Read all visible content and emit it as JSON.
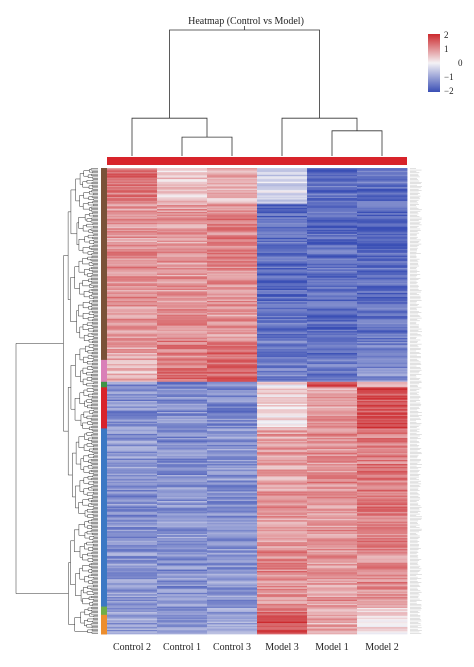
{
  "chart_data": {
    "type": "heatmap",
    "title": "Heatmap (Control vs Model)",
    "samples": [
      "Control 2",
      "Control 1",
      "Control 3",
      "Model 3",
      "Model 1",
      "Model 2"
    ],
    "color_scale": {
      "min": -2,
      "max": 2,
      "ticks": [
        "2",
        "1",
        "0",
        "−1",
        "−2"
      ],
      "colors": {
        "low": "#3a4fb5",
        "mid": "#f4f2f5",
        "high": "#cc2a2e"
      }
    },
    "column_group_color": "#d8232a",
    "row_cluster_colors": [
      "#7a5238",
      "#d97fb8",
      "#3f9447",
      "#d8232a",
      "#3b78c4",
      "#6fae48",
      "#ec8e2e"
    ],
    "row_blocks": [
      {
        "rows": 26,
        "cluster": "#7a5238",
        "values": [
          1.3,
          0.4,
          0.6,
          -0.3,
          -1.6,
          -1.6
        ]
      },
      {
        "rows": 34,
        "cluster": "#7a5238",
        "values": [
          0.9,
          0.9,
          1.1,
          -1.6,
          -1.7,
          -1.7
        ]
      },
      {
        "rows": 40,
        "cluster": "#7a5238",
        "values": [
          1.0,
          0.9,
          1.0,
          -1.7,
          -1.6,
          -1.6
        ]
      },
      {
        "rows": 26,
        "cluster": "#7a5238",
        "values": [
          0.9,
          1.0,
          0.9,
          -1.6,
          -1.7,
          -1.5
        ]
      },
      {
        "rows": 14,
        "cluster": "#7a5238",
        "values": [
          0.8,
          1.1,
          1.3,
          -1.5,
          -1.6,
          -1.4
        ]
      },
      {
        "rows": 16,
        "cluster": "#d97fb8",
        "values": [
          0.6,
          1.2,
          1.4,
          -1.4,
          -1.4,
          -1.2
        ]
      },
      {
        "rows": 4,
        "cluster": "#3f9447",
        "values": [
          -1.2,
          -1.3,
          -1.2,
          0.2,
          1.6,
          0.3
        ]
      },
      {
        "rows": 30,
        "cluster": "#d8232a",
        "values": [
          -1.2,
          -1.2,
          -1.3,
          0.3,
          0.8,
          1.6
        ]
      },
      {
        "rows": 40,
        "cluster": "#3b78c4",
        "values": [
          -1.1,
          -1.2,
          -1.1,
          0.8,
          1.0,
          1.2
        ]
      },
      {
        "rows": 50,
        "cluster": "#3b78c4",
        "values": [
          -1.2,
          -1.1,
          -1.2,
          0.9,
          0.9,
          1.2
        ]
      },
      {
        "rows": 40,
        "cluster": "#3b78c4",
        "values": [
          -1.1,
          -1.2,
          -1.1,
          1.0,
          0.9,
          1.0
        ]
      },
      {
        "rows": 6,
        "cluster": "#6fae48",
        "values": [
          -1.0,
          -1.1,
          -1.0,
          1.3,
          0.6,
          0.5
        ]
      },
      {
        "rows": 14,
        "cluster": "#ec8e2e",
        "values": [
          -1.0,
          -1.1,
          -0.8,
          1.6,
          0.7,
          0.3
        ]
      }
    ],
    "column_dendrogram": {
      "children": [
        {
          "children": [
            {
              "leaf": 0
            },
            {
              "children": [
                {
                  "leaf": 1
                },
                {
                  "leaf": 2
                }
              ],
              "height": 0.15
            }
          ],
          "height": 0.3
        },
        {
          "children": [
            {
              "leaf": 3
            },
            {
              "children": [
                {
                  "leaf": 4
                },
                {
                  "leaf": 5
                }
              ],
              "height": 0.2
            }
          ],
          "height": 0.3
        }
      ],
      "height": 1.0
    }
  }
}
